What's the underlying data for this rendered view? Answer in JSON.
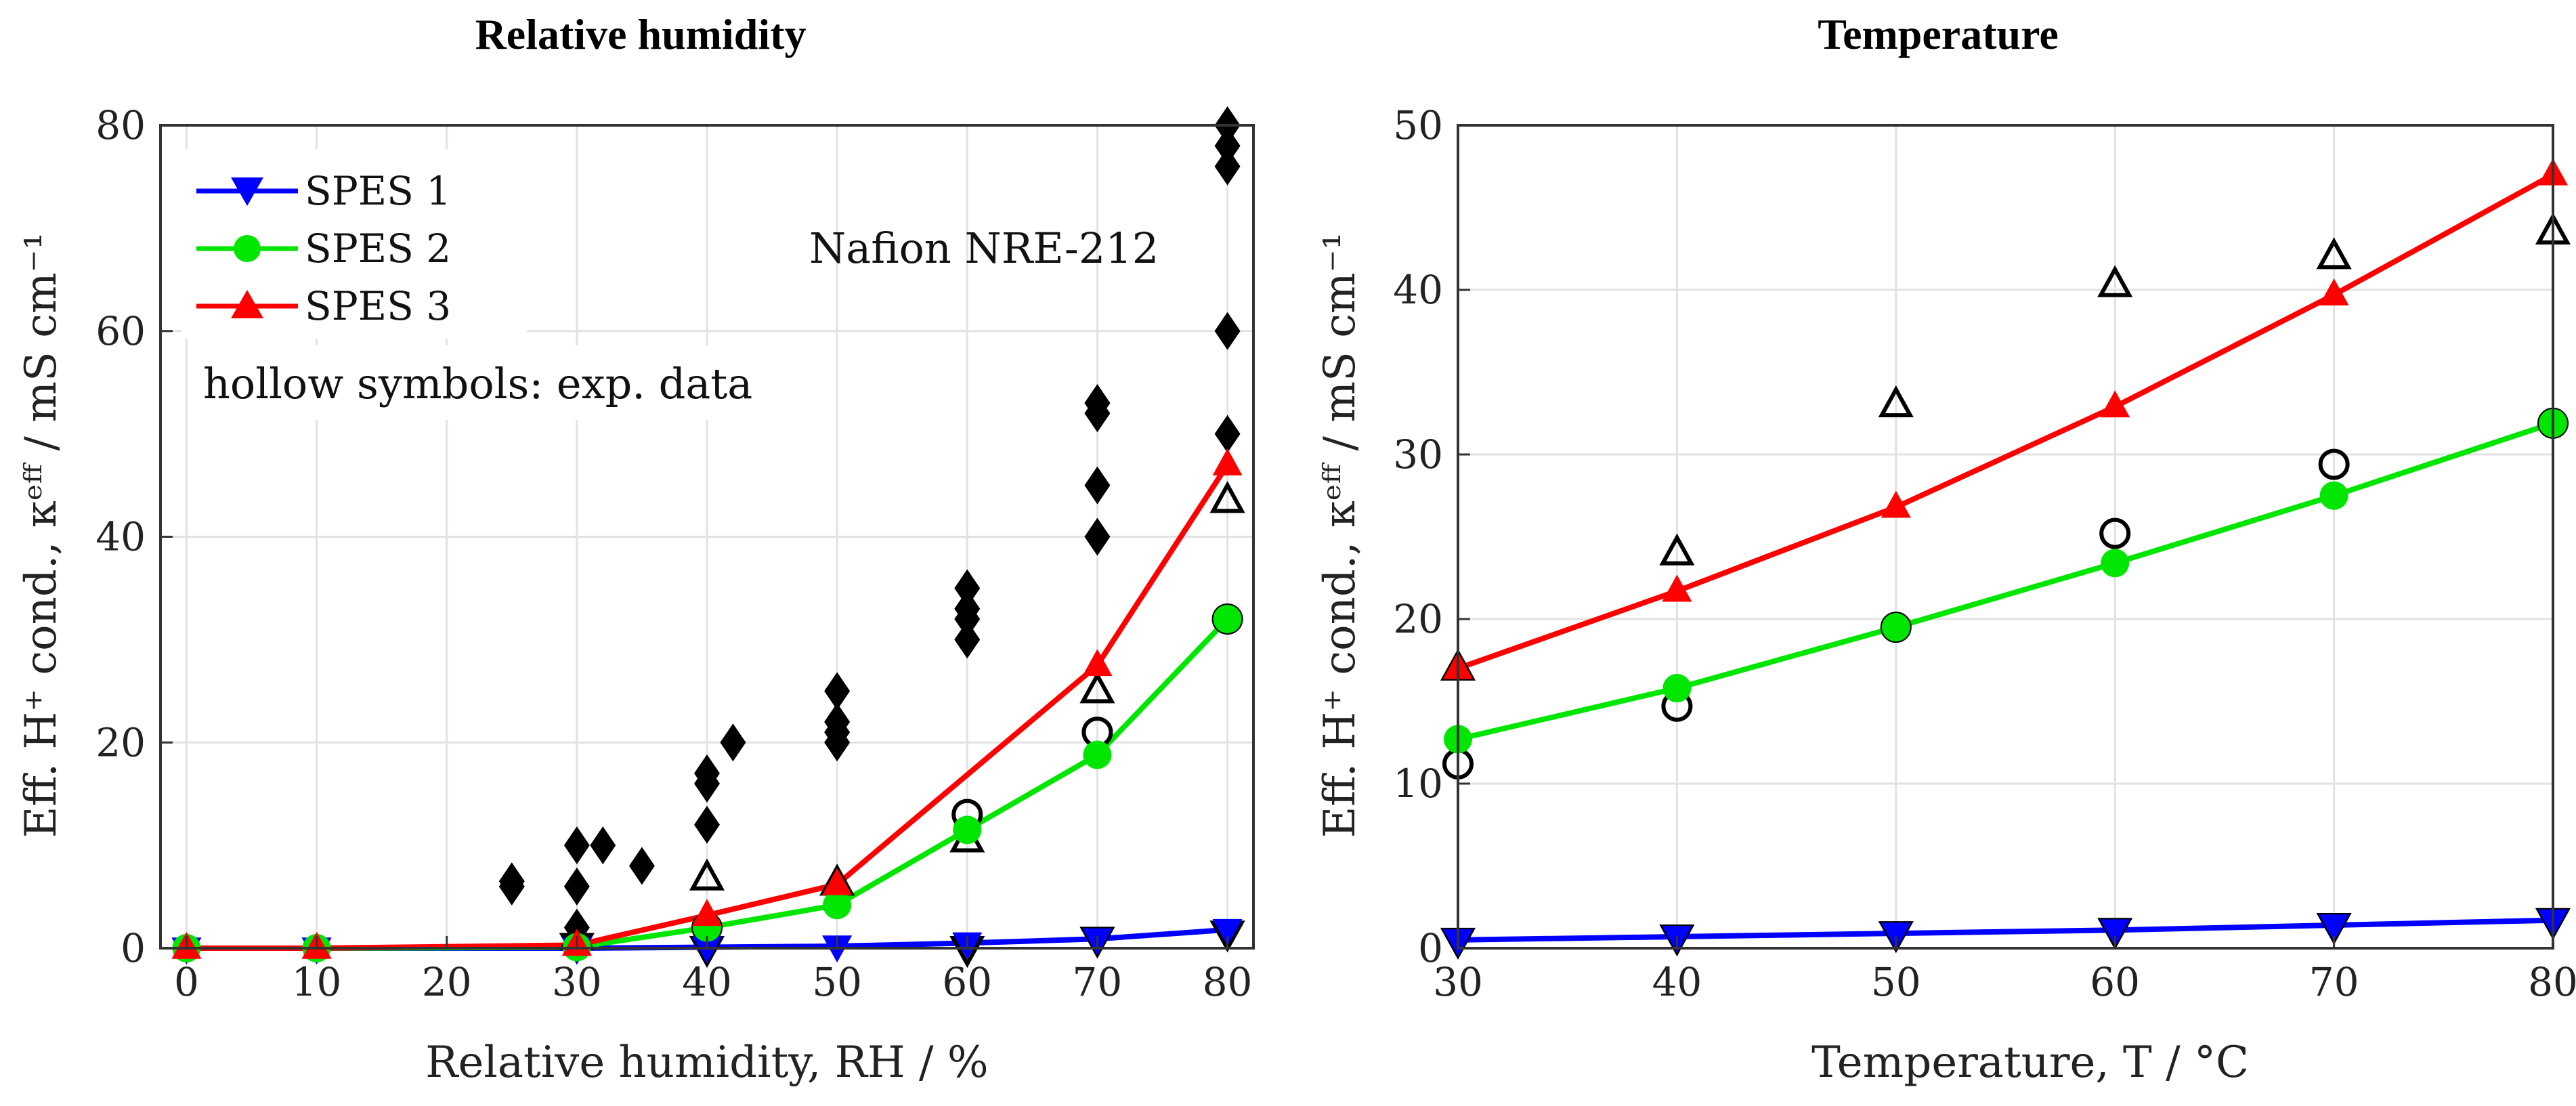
{
  "colors": {
    "spes1": "#0000ff",
    "spes2": "#00e600",
    "spes3": "#ff0000",
    "exp": "#000000",
    "nafion": "#000000",
    "grid": "#e2e2e2",
    "axis": "#333333"
  },
  "legend": {
    "entries": [
      {
        "label": "SPES 1",
        "series": "spes1",
        "marker": "triangle-down"
      },
      {
        "label": "SPES 2",
        "series": "spes2",
        "marker": "circle"
      },
      {
        "label": "SPES 3",
        "series": "spes3",
        "marker": "triangle-up"
      }
    ],
    "placement": "top-left"
  },
  "annotations": {
    "hollow_note": "hollow symbols: exp. data",
    "nafion_label": "Nafion NRE-212"
  },
  "chart_data": [
    {
      "type": "line",
      "title": "Relative humidity",
      "xlabel": "Relative humidity, RH / %",
      "ylabel": "Eff. H⁺ cond., κᵉᶠᶠ / mS cm⁻¹",
      "xlim": [
        -2,
        82
      ],
      "ylim": [
        0,
        80
      ],
      "xticks": [
        0,
        10,
        20,
        30,
        40,
        50,
        60,
        70,
        80
      ],
      "yticks": [
        0,
        20,
        40,
        60,
        80
      ],
      "grid": true,
      "series": [
        {
          "name": "SPES 1",
          "key": "spes1",
          "marker": "triangle-down",
          "x": [
            0,
            10,
            30,
            40,
            50,
            60,
            70,
            80
          ],
          "y": [
            0,
            0,
            0,
            0.1,
            0.2,
            0.5,
            0.9,
            1.8
          ]
        },
        {
          "name": "SPES 2",
          "key": "spes2",
          "marker": "circle",
          "x": [
            0,
            10,
            30,
            40,
            50,
            60,
            70,
            80
          ],
          "y": [
            0,
            0,
            0.1,
            2.0,
            4.2,
            11.5,
            18.8,
            32.0
          ]
        },
        {
          "name": "SPES 3",
          "key": "spes3",
          "marker": "triangle-up",
          "x": [
            0,
            10,
            30,
            40,
            50,
            60,
            70,
            80
          ],
          "y": [
            0,
            0,
            0.3,
            3.2,
            6.2,
            null,
            27.5,
            47.0
          ]
        }
      ],
      "experimental": [
        {
          "key": "spes1",
          "marker": "triangle-down",
          "x": [
            30,
            40,
            60,
            70,
            80
          ],
          "y": [
            0.3,
            0,
            0,
            0.9,
            1.5
          ]
        },
        {
          "key": "spes2",
          "marker": "circle",
          "x": [
            40,
            60,
            70,
            80
          ],
          "y": [
            2.0,
            13.0,
            21.0,
            32.0
          ]
        },
        {
          "key": "spes3",
          "marker": "triangle-up",
          "x": [
            30,
            40,
            50,
            60,
            70,
            80
          ],
          "y": [
            1.0,
            6.8,
            6.3,
            10.5,
            25.0,
            43.5
          ]
        }
      ],
      "nafion": {
        "name": "Nafion NRE-212",
        "marker": "diamond",
        "x": [
          25,
          25,
          30,
          30,
          30,
          32,
          35,
          40,
          40,
          40,
          42,
          50,
          50,
          50,
          50,
          60,
          60,
          60,
          60,
          70,
          70,
          70,
          70,
          70,
          80,
          80,
          80,
          80,
          80,
          80
        ],
        "y": [
          6,
          6.5,
          10,
          6,
          2,
          10,
          8,
          12,
          16,
          17,
          20,
          20,
          22,
          21,
          25,
          30,
          32,
          33,
          35,
          40,
          45,
          52,
          53,
          53,
          50,
          60,
          76,
          78,
          80,
          80
        ]
      }
    },
    {
      "type": "line",
      "title": "Temperature",
      "xlabel": "Temperature, T / °C",
      "ylabel": "Eff. H⁺ cond., κᵉᶠᶠ / mS cm⁻¹",
      "xlim": [
        30,
        80
      ],
      "ylim": [
        0,
        50
      ],
      "xticks": [
        30,
        40,
        50,
        60,
        70,
        80
      ],
      "yticks": [
        0,
        10,
        20,
        30,
        40,
        50
      ],
      "grid": true,
      "series": [
        {
          "name": "SPES 1",
          "key": "spes1",
          "marker": "triangle-down",
          "x": [
            30,
            40,
            50,
            60,
            70,
            80
          ],
          "y": [
            0.5,
            0.7,
            0.9,
            1.1,
            1.4,
            1.7
          ]
        },
        {
          "name": "SPES 2",
          "key": "spes2",
          "marker": "circle",
          "x": [
            30,
            40,
            50,
            60,
            70,
            80
          ],
          "y": [
            12.7,
            15.8,
            19.5,
            23.4,
            27.5,
            31.9
          ]
        },
        {
          "name": "SPES 3",
          "key": "spes3",
          "marker": "triangle-up",
          "x": [
            30,
            40,
            50,
            60,
            70,
            80
          ],
          "y": [
            17.0,
            21.7,
            26.8,
            32.9,
            39.7,
            47.0
          ]
        }
      ],
      "experimental": [
        {
          "key": "spes1",
          "marker": "triangle-down",
          "x": [
            30,
            40,
            50,
            60,
            70,
            80
          ],
          "y": [
            0.5,
            0.7,
            0.9,
            1.1,
            1.4,
            1.7
          ]
        },
        {
          "key": "spes2",
          "marker": "circle",
          "x": [
            30,
            40,
            50,
            60,
            70,
            80
          ],
          "y": [
            11.2,
            14.7,
            19.5,
            25.2,
            29.4,
            31.9
          ]
        },
        {
          "key": "spes3",
          "marker": "triangle-up",
          "x": [
            30,
            40,
            50,
            60,
            70,
            80
          ],
          "y": [
            17.0,
            24.0,
            33.0,
            40.3,
            42.0,
            43.5
          ]
        }
      ]
    }
  ]
}
